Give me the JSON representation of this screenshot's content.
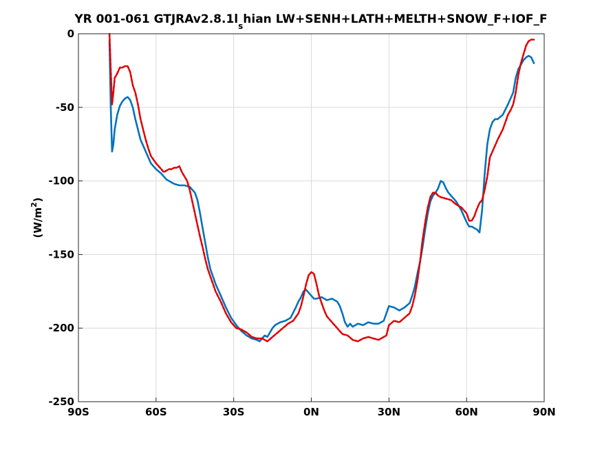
{
  "chart_data": {
    "type": "line",
    "title_main": "YR 001-061 GTJRAv2.8.1l",
    "title_sub": "s",
    "title_rest": "hian LW+SENH+LATH+MELTH+SNOW_F+IOF_F",
    "ylabel_pre": "(W/m",
    "ylabel_sup": "2",
    "ylabel_post": ")",
    "xlim": [
      -90,
      90
    ],
    "ylim": [
      -250,
      0
    ],
    "grid": true,
    "xticks": [
      -90,
      -60,
      -30,
      0,
      30,
      60,
      90
    ],
    "xtick_labels": [
      "90S",
      "60S",
      "30S",
      "0N",
      "30N",
      "60N",
      "90N"
    ],
    "yticks": [
      0,
      -50,
      -100,
      -150,
      -200,
      -250
    ],
    "ytick_labels": [
      "0",
      "-50",
      "-100",
      "-150",
      "-200",
      "-250"
    ],
    "series": [
      {
        "color": "#0072BD",
        "style": "solid",
        "x": [
          -78,
          -77.5,
          -77,
          -76.5,
          -76,
          -75,
          -74,
          -73,
          -72,
          -71,
          -70,
          -69,
          -68,
          -67,
          -66,
          -64,
          -62,
          -60,
          -58,
          -57,
          -56,
          -55,
          -53,
          -51,
          -49,
          -47,
          -46,
          -45,
          -44,
          -43,
          -42,
          -41,
          -40,
          -39,
          -38,
          -37,
          -35,
          -33,
          -31,
          -29,
          -27,
          -25,
          -23,
          -21,
          -20,
          -19,
          -18,
          -17,
          -16,
          -15,
          -14,
          -12,
          -10,
          -8,
          -6,
          -5,
          -4,
          -3,
          -2,
          -1,
          0,
          1,
          2,
          4,
          6,
          8,
          10,
          11,
          12,
          13,
          14,
          15,
          16,
          18,
          20,
          22,
          24,
          26,
          28,
          29,
          30,
          32,
          34,
          36,
          38,
          39,
          40,
          41,
          42,
          43,
          44,
          45,
          46,
          47,
          48,
          49,
          50,
          51,
          52,
          53,
          54,
          55,
          56,
          57,
          58,
          59,
          60,
          61,
          62,
          63,
          64,
          65,
          66,
          67,
          68,
          69,
          70,
          71,
          72,
          74,
          76,
          78,
          79,
          80,
          81,
          82,
          83,
          84,
          85,
          86
        ],
        "values": [
          -5,
          -50,
          -80,
          -75,
          -65,
          -55,
          -49,
          -46,
          -44,
          -43,
          -45,
          -50,
          -58,
          -65,
          -72,
          -80,
          -88,
          -92,
          -95,
          -97,
          -99,
          -100,
          -102,
          -103,
          -103,
          -104,
          -106,
          -108,
          -113,
          -122,
          -132,
          -142,
          -152,
          -160,
          -165,
          -170,
          -178,
          -186,
          -193,
          -198,
          -202,
          -205,
          -207,
          -208,
          -209,
          -207,
          -205,
          -206,
          -203,
          -200,
          -198,
          -196,
          -195,
          -193,
          -186,
          -182,
          -179,
          -175,
          -174,
          -176,
          -178,
          -180,
          -180,
          -179,
          -181,
          -180,
          -182,
          -185,
          -190,
          -196,
          -199,
          -197,
          -199,
          -197,
          -198,
          -196,
          -197,
          -197,
          -195,
          -190,
          -185,
          -186,
          -188,
          -186,
          -183,
          -178,
          -172,
          -163,
          -155,
          -145,
          -133,
          -122,
          -114,
          -110,
          -108,
          -105,
          -100,
          -101,
          -105,
          -108,
          -110,
          -112,
          -114,
          -117,
          -120,
          -124,
          -128,
          -131,
          -131,
          -132,
          -133,
          -135,
          -120,
          -95,
          -75,
          -65,
          -60,
          -58,
          -58,
          -55,
          -48,
          -40,
          -30,
          -24,
          -21,
          -18,
          -16,
          -15,
          -16,
          -20
        ]
      },
      {
        "color": "#E00000",
        "style": "dashed",
        "x": [
          -78,
          -77.5,
          -77,
          -76.5,
          -76,
          -75,
          -74,
          -73,
          -72,
          -71,
          -70,
          -69,
          -68,
          -67,
          -66,
          -65,
          -64,
          -63,
          -62,
          -60,
          -58,
          -57,
          -56,
          -55,
          -54,
          -53,
          -52,
          -51,
          -50,
          -49,
          -48,
          -47,
          -46,
          -45,
          -44,
          -43,
          -42,
          -41,
          -40,
          -39,
          -38,
          -37,
          -35,
          -33,
          -31,
          -29,
          -27,
          -25,
          -23,
          -21,
          -19,
          -17,
          -15,
          -13,
          -11,
          -9,
          -7,
          -5,
          -4,
          -3,
          -2,
          -1,
          0,
          1,
          2,
          3,
          4,
          5,
          6,
          7,
          8,
          10,
          12,
          14,
          16,
          18,
          20,
          22,
          24,
          26,
          27,
          28,
          29,
          30,
          32,
          34,
          36,
          38,
          39,
          40,
          41,
          42,
          43,
          44,
          45,
          46,
          47,
          48,
          49,
          50,
          52,
          54,
          56,
          58,
          60,
          61,
          62,
          63,
          64,
          65,
          66,
          67,
          68,
          69,
          70,
          72,
          74,
          75,
          76,
          77,
          78,
          79,
          80,
          81,
          82,
          83,
          84,
          85,
          86
        ],
        "values": [
          0,
          -25,
          -48,
          -40,
          -30,
          -27,
          -23,
          -23,
          -22,
          -22,
          -26,
          -35,
          -40,
          -48,
          -58,
          -65,
          -72,
          -78,
          -83,
          -88,
          -92,
          -94,
          -93,
          -92,
          -92,
          -91,
          -91,
          -90,
          -94,
          -97,
          -100,
          -106,
          -114,
          -122,
          -130,
          -138,
          -145,
          -153,
          -160,
          -165,
          -170,
          -175,
          -182,
          -190,
          -196,
          -200,
          -201,
          -203,
          -206,
          -207,
          -207,
          -209,
          -206,
          -203,
          -200,
          -197,
          -195,
          -190,
          -185,
          -178,
          -170,
          -164,
          -162,
          -163,
          -170,
          -178,
          -183,
          -188,
          -192,
          -194,
          -196,
          -200,
          -204,
          -205,
          -208,
          -209,
          -207,
          -206,
          -207,
          -208,
          -207,
          -206,
          -205,
          -198,
          -195,
          -196,
          -193,
          -190,
          -185,
          -178,
          -168,
          -155,
          -140,
          -128,
          -118,
          -111,
          -108,
          -108,
          -110,
          -111,
          -112,
          -113,
          -116,
          -118,
          -122,
          -127,
          -127,
          -124,
          -119,
          -115,
          -113,
          -106,
          -97,
          -84,
          -80,
          -72,
          -65,
          -60,
          -55,
          -52,
          -48,
          -40,
          -28,
          -20,
          -14,
          -8,
          -5,
          -4,
          -4
        ]
      }
    ]
  }
}
